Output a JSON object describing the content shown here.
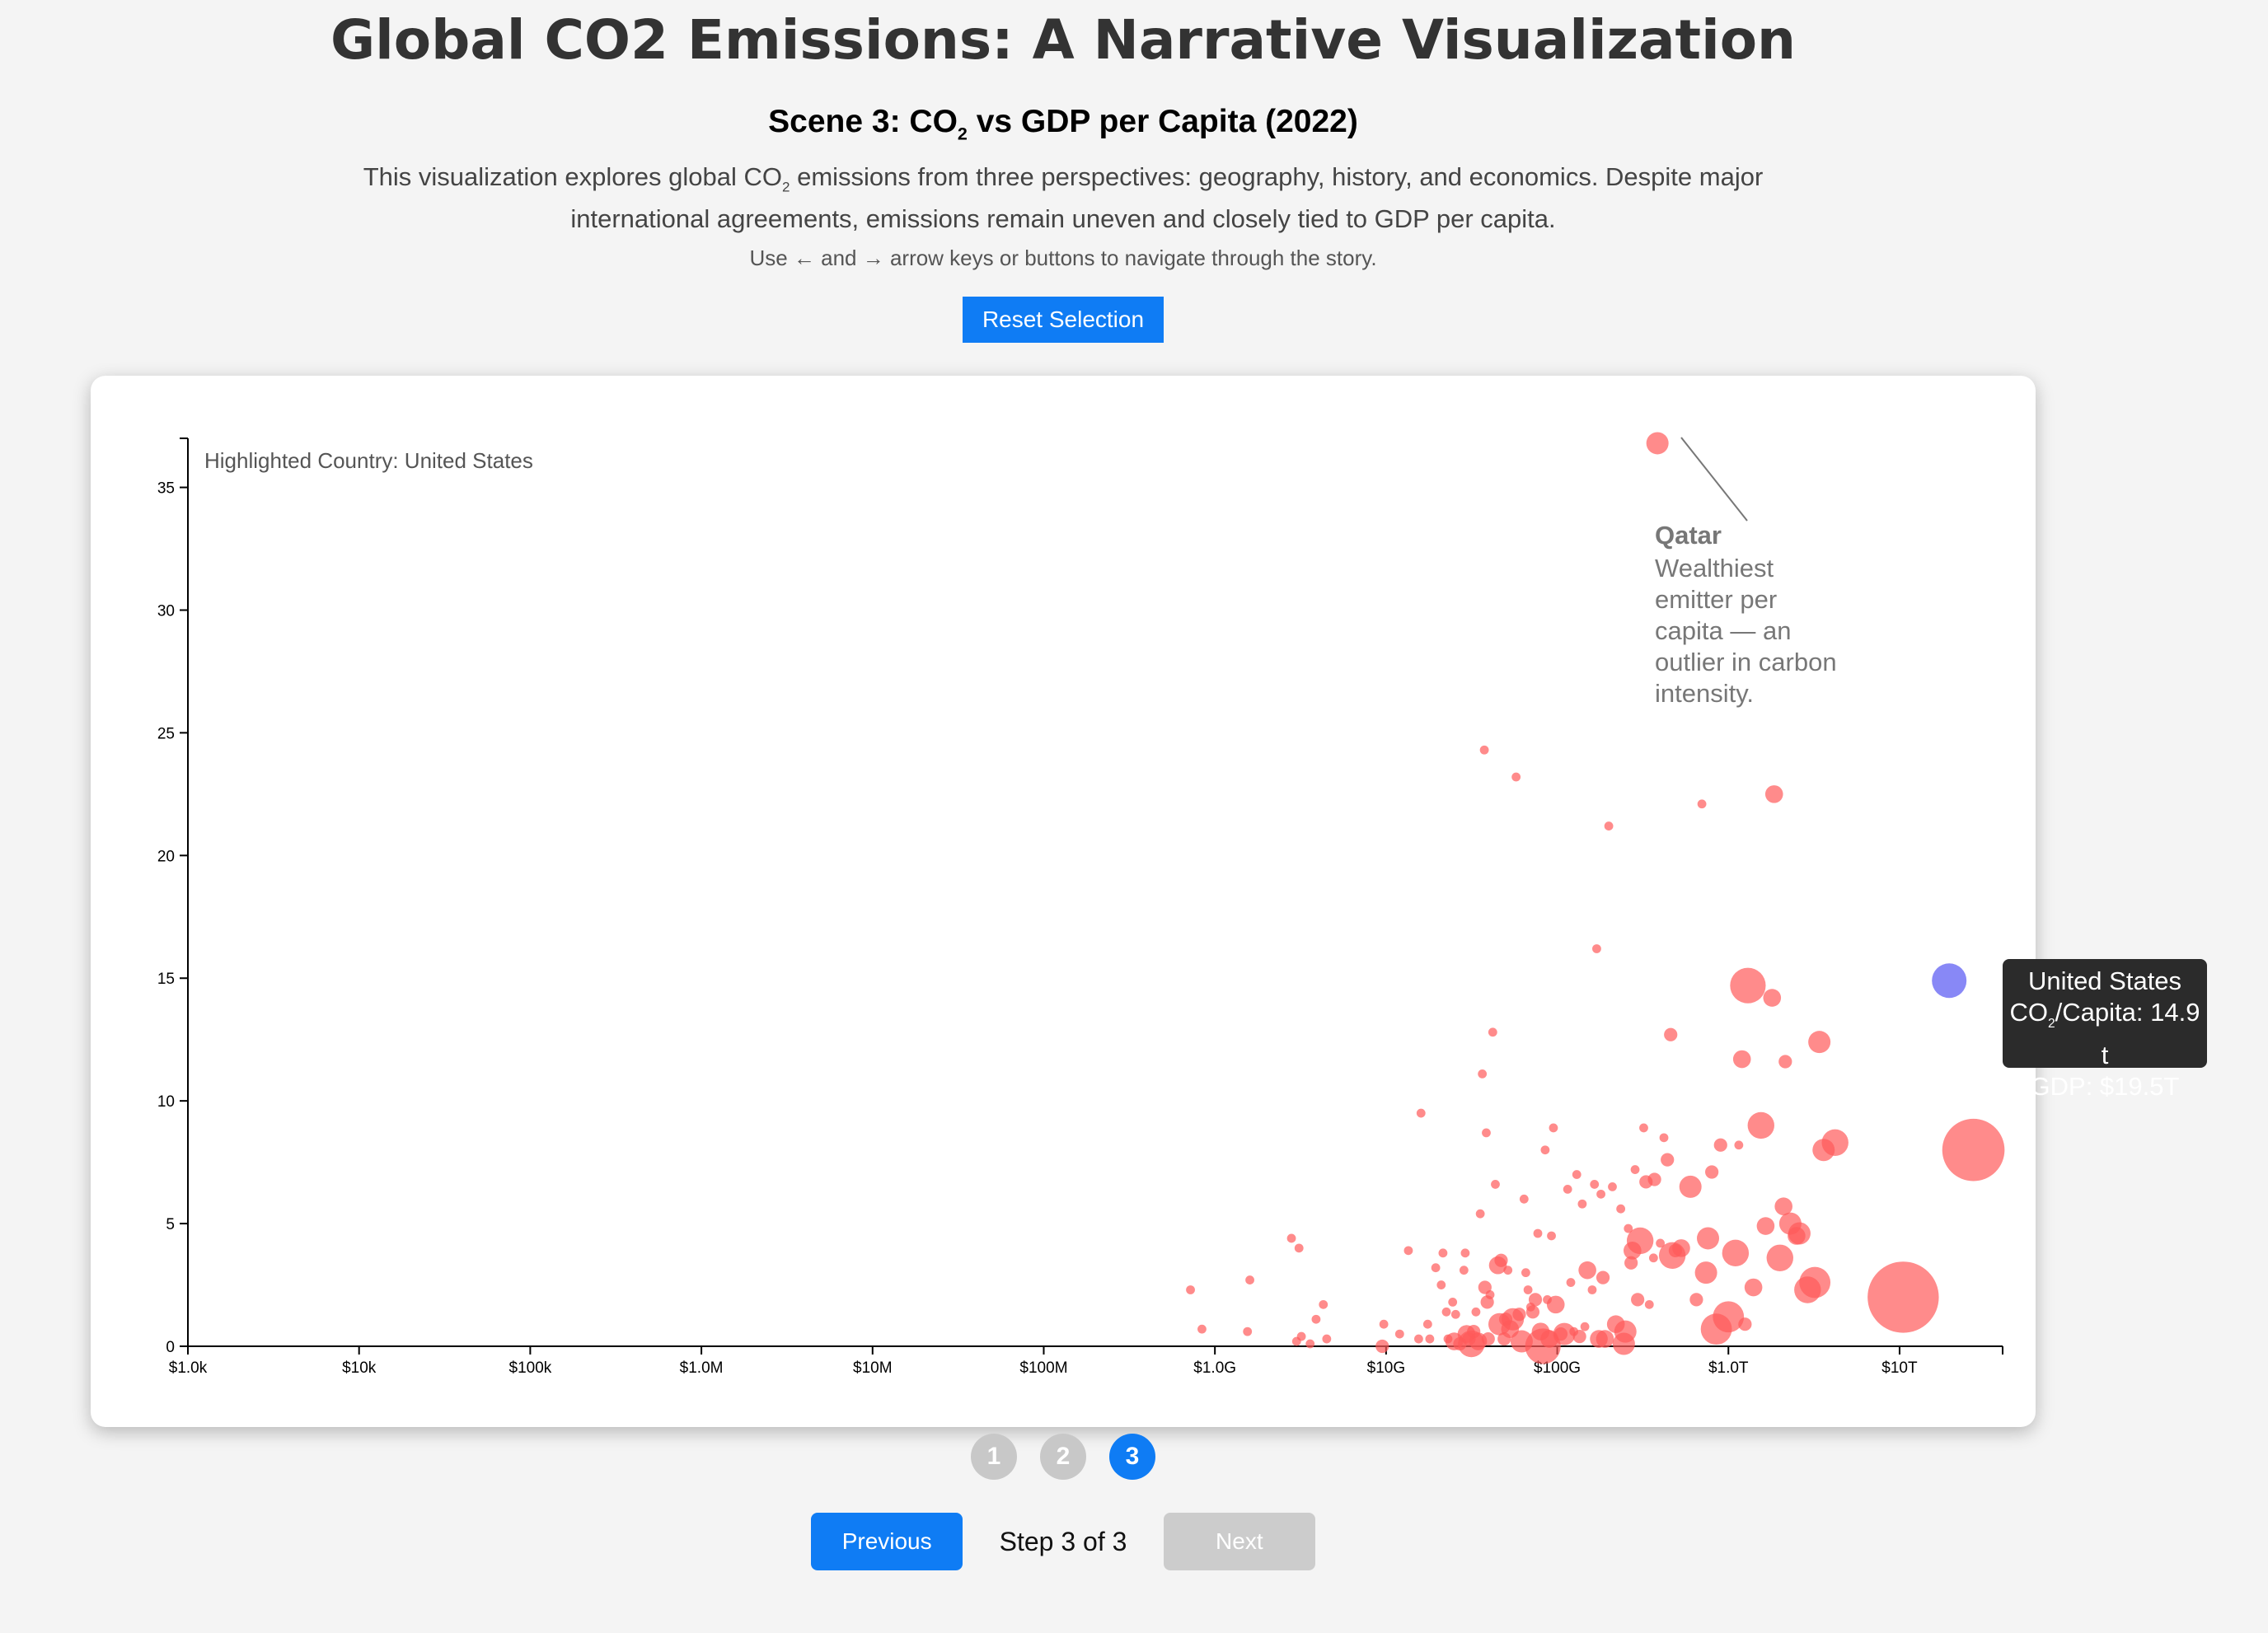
{
  "header": {
    "title": "Global CO2 Emissions: A Narrative Visualization",
    "scene_title_pre": "Scene 3: CO",
    "scene_title_sub": "2",
    "scene_title_post": " vs GDP per Capita (2022)",
    "intro_1": "This visualization explores global CO",
    "intro_sub": "2",
    "intro_2": " emissions from three perspectives: geography, history, and economics. Despite major international agreements, emissions remain uneven and closely tied to GDP per capita.",
    "hint": "Use ← and → arrow keys or buttons to navigate through the story.",
    "reset_label": "Reset Selection"
  },
  "annotation": {
    "highlighted": "Highlighted Country: United States",
    "qatar_title": "Qatar",
    "qatar_lines": [
      "Wealthiest",
      "emitter per",
      "capita — an",
      "outlier in carbon",
      "intensity."
    ]
  },
  "tooltip": {
    "country": "United States",
    "co2_pre": "CO",
    "co2_sub": "2",
    "co2_post": "/Capita: 14.9 t",
    "gdp": "GDP: $19.5T"
  },
  "chart_data": {
    "type": "scatter",
    "x_scale": "log",
    "xlim": [
      1000,
      40000000000000
    ],
    "ylim": [
      0,
      37
    ],
    "x_ticks": [
      {
        "v": 1000,
        "label": "$1.0k"
      },
      {
        "v": 10000,
        "label": "$10k"
      },
      {
        "v": 100000,
        "label": "$100k"
      },
      {
        "v": 1000000,
        "label": "$1.0M"
      },
      {
        "v": 10000000,
        "label": "$10M"
      },
      {
        "v": 100000000,
        "label": "$100M"
      },
      {
        "v": 1000000000,
        "label": "$1.0G"
      },
      {
        "v": 10000000000,
        "label": "$10G"
      },
      {
        "v": 100000000000,
        "label": "$100G"
      },
      {
        "v": 1000000000000,
        "label": "$1.0T"
      },
      {
        "v": 10000000000000,
        "label": "$10T"
      }
    ],
    "y_ticks": [
      0,
      5,
      10,
      15,
      20,
      25,
      30,
      35
    ],
    "highlight": {
      "name": "United States",
      "gdp": 19500000000000,
      "co2": 14.9,
      "color": "#7b7bf5"
    },
    "point_color": "#ff5a5a",
    "points": [
      [
        720000000,
        2.3
      ],
      [
        840000000,
        0.7
      ],
      [
        1600000000,
        2.7
      ],
      [
        1550000000,
        0.6
      ],
      [
        2800000000,
        4.4
      ],
      [
        3100000000,
        4.0
      ],
      [
        3200000000,
        0.4
      ],
      [
        3600000000,
        0.1
      ],
      [
        3900000000,
        1.1
      ],
      [
        4300000000,
        1.7
      ],
      [
        4500000000,
        0.3
      ],
      [
        3000000000,
        0.2
      ],
      [
        9500000000,
        0.0
      ],
      [
        9700000000,
        0.9
      ],
      [
        12000000000,
        0.5
      ],
      [
        13500000000,
        3.9
      ],
      [
        15500000000,
        0.3
      ],
      [
        16000000000,
        9.5
      ],
      [
        17500000000,
        0.9
      ],
      [
        18000000000,
        0.3
      ],
      [
        19500000000,
        3.2
      ],
      [
        21000000000,
        2.5
      ],
      [
        21500000000,
        3.8
      ],
      [
        22500000000,
        1.4
      ],
      [
        23000000000,
        0.3
      ],
      [
        24500000000,
        1.8
      ],
      [
        25500000000,
        1.3
      ],
      [
        25000000000,
        0.2
      ],
      [
        27000000000,
        0.1
      ],
      [
        28500000000,
        3.1
      ],
      [
        29000000000,
        3.8
      ],
      [
        29500000000,
        0.5
      ],
      [
        30500000000,
        0.3
      ],
      [
        31500000000,
        0.1
      ],
      [
        32500000000,
        0.6
      ],
      [
        33500000000,
        1.4
      ],
      [
        34500000000,
        0.2
      ],
      [
        35500000000,
        5.4
      ],
      [
        36500000000,
        11.1
      ],
      [
        37500000000,
        24.3
      ],
      [
        37800000000,
        2.4
      ],
      [
        38500000000,
        8.7
      ],
      [
        39000000000,
        1.8
      ],
      [
        39500000000,
        0.3
      ],
      [
        40500000000,
        2.1
      ],
      [
        42000000000,
        12.8
      ],
      [
        43500000000,
        6.6
      ],
      [
        45000000000,
        3.3
      ],
      [
        46000000000,
        0.9
      ],
      [
        47000000000,
        3.5
      ],
      [
        49000000000,
        0.3
      ],
      [
        50000000000,
        1.1
      ],
      [
        51500000000,
        3.1
      ],
      [
        53000000000,
        0.7
      ],
      [
        55000000000,
        1.1
      ],
      [
        57500000000,
        23.2
      ],
      [
        60000000000,
        1.3
      ],
      [
        62000000000,
        0.2
      ],
      [
        64000000000,
        6.0
      ],
      [
        65500000000,
        3.0
      ],
      [
        67500000000,
        2.3
      ],
      [
        70000000000,
        1.6
      ],
      [
        72000000000,
        1.4
      ],
      [
        74500000000,
        1.9
      ],
      [
        77000000000,
        4.6
      ],
      [
        80000000000,
        0.6
      ],
      [
        82500000000,
        0.0
      ],
      [
        85000000000,
        8.0
      ],
      [
        87500000000,
        1.9
      ],
      [
        90000000000,
        0.3
      ],
      [
        92500000000,
        4.5
      ],
      [
        95000000000,
        8.9
      ],
      [
        98000000000,
        1.7
      ],
      [
        105000000000,
        0.5
      ],
      [
        110000000000,
        0.5
      ],
      [
        115000000000,
        6.4
      ],
      [
        120000000000,
        2.6
      ],
      [
        125000000000,
        0.6
      ],
      [
        130000000000,
        7.0
      ],
      [
        135000000000,
        0.4
      ],
      [
        140000000000,
        5.8
      ],
      [
        145000000000,
        0.8
      ],
      [
        150000000000,
        3.1
      ],
      [
        160000000000,
        2.3
      ],
      [
        165000000000,
        6.6
      ],
      [
        170000000000,
        16.2
      ],
      [
        175000000000,
        0.3
      ],
      [
        180000000000,
        6.2
      ],
      [
        185000000000,
        2.8
      ],
      [
        190000000000,
        0.3
      ],
      [
        200000000000,
        21.2
      ],
      [
        210000000000,
        6.5
      ],
      [
        220000000000,
        0.9
      ],
      [
        235000000000,
        5.6
      ],
      [
        245000000000,
        0.1
      ],
      [
        250000000000,
        0.6
      ],
      [
        260000000000,
        4.8
      ],
      [
        270000000000,
        3.4
      ],
      [
        275000000000,
        3.9
      ],
      [
        285000000000,
        7.2
      ],
      [
        295000000000,
        1.9
      ],
      [
        305000000000,
        4.3
      ],
      [
        320000000000,
        8.9
      ],
      [
        330000000000,
        6.7
      ],
      [
        345000000000,
        1.7
      ],
      [
        365000000000,
        3.6
      ],
      [
        370000000000,
        6.8
      ],
      [
        385000000000,
        36.8
      ],
      [
        400000000000,
        4.2
      ],
      [
        420000000000,
        8.5
      ],
      [
        440000000000,
        7.6
      ],
      [
        460000000000,
        12.7
      ],
      [
        470000000000,
        3.7
      ],
      [
        490000000000,
        3.9
      ],
      [
        530000000000,
        4.0
      ],
      [
        600000000000,
        6.5
      ],
      [
        650000000000,
        1.9
      ],
      [
        700000000000,
        22.1
      ],
      [
        740000000000,
        3.0
      ],
      [
        760000000000,
        4.4
      ],
      [
        800000000000,
        7.1
      ],
      [
        850000000000,
        0.7
      ],
      [
        900000000000,
        8.2
      ],
      [
        1000000000000,
        1.2
      ],
      [
        1100000000000,
        3.8
      ],
      [
        1150000000000,
        8.2
      ],
      [
        1200000000000,
        11.7
      ],
      [
        1250000000000,
        0.9
      ],
      [
        1300000000000,
        14.7
      ],
      [
        1400000000000,
        2.4
      ],
      [
        1550000000000,
        9.0
      ],
      [
        1650000000000,
        4.9
      ],
      [
        1800000000000,
        14.2
      ],
      [
        1850000000000,
        22.5
      ],
      [
        2000000000000,
        3.6
      ],
      [
        2100000000000,
        5.7
      ],
      [
        2150000000000,
        11.6
      ],
      [
        2300000000000,
        5.0
      ],
      [
        2500000000000,
        4.5
      ],
      [
        2600000000000,
        4.6
      ],
      [
        2900000000000,
        2.3
      ],
      [
        3200000000000,
        2.6
      ],
      [
        3400000000000,
        12.4
      ],
      [
        3600000000000,
        8.0
      ],
      [
        4200000000000,
        8.3
      ],
      [
        10500000000000,
        2.0
      ],
      [
        27000000000000,
        8.0
      ]
    ],
    "sizes": [
      2,
      2,
      2,
      2,
      2,
      2,
      2,
      2,
      2,
      2,
      2,
      2,
      3,
      2,
      2,
      2,
      2,
      2,
      2,
      2,
      2,
      2,
      2,
      2,
      2,
      2,
      2,
      4,
      3,
      2,
      2,
      4,
      3,
      6,
      3,
      2,
      4,
      2,
      2,
      2,
      3,
      2,
      3,
      3,
      2,
      2,
      2,
      4,
      5,
      3,
      3,
      3,
      2,
      4,
      5,
      2,
      3,
      5,
      2,
      2,
      2,
      2,
      3,
      3,
      2,
      4,
      8,
      2,
      2,
      4,
      2,
      2,
      4,
      3,
      5,
      2,
      2,
      2,
      2,
      3,
      2,
      2,
      4,
      2,
      2,
      2,
      4,
      2,
      3,
      4,
      2,
      2,
      4,
      2,
      5,
      5,
      2,
      3,
      4,
      2,
      3,
      6,
      2,
      3,
      2,
      2,
      3,
      5,
      2,
      2,
      3,
      3,
      6,
      3,
      4,
      5,
      3,
      2,
      5,
      5,
      3,
      7,
      3,
      7,
      6,
      2,
      4,
      3,
      8,
      4,
      6,
      4,
      4,
      4,
      6,
      4,
      3,
      5,
      4,
      5,
      6,
      7,
      5,
      5,
      6,
      16,
      14
    ]
  },
  "stepper": {
    "steps": [
      "1",
      "2",
      "3"
    ],
    "active": 3,
    "prev_label": "Previous",
    "next_label": "Next",
    "status": "Step 3 of 3"
  }
}
